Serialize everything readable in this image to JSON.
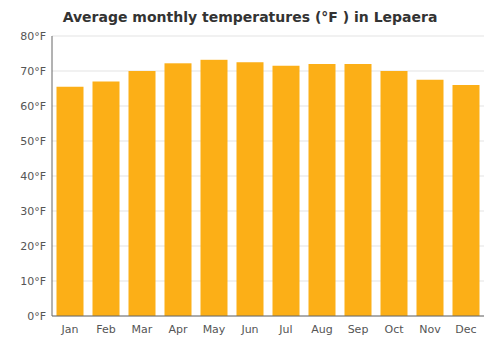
{
  "chart_data": {
    "type": "bar",
    "title": "Average monthly temperatures (°F ) in Lepaera",
    "categories": [
      "Jan",
      "Feb",
      "Mar",
      "Apr",
      "May",
      "Jun",
      "Jul",
      "Aug",
      "Sep",
      "Oct",
      "Nov",
      "Dec"
    ],
    "values": [
      65.5,
      67.0,
      70.0,
      72.2,
      73.2,
      72.5,
      71.5,
      72.0,
      72.0,
      70.0,
      67.5,
      66.0
    ],
    "color": "#FCAF17",
    "ylim": [
      0,
      80
    ],
    "yticks": [
      {
        "value": 0,
        "label": "0°F"
      },
      {
        "value": 10,
        "label": "10°F"
      },
      {
        "value": 20,
        "label": "20°F"
      },
      {
        "value": 30,
        "label": "30°F"
      },
      {
        "value": 40,
        "label": "40°F"
      },
      {
        "value": 50,
        "label": "50°F"
      },
      {
        "value": 60,
        "label": "60°F"
      },
      {
        "value": 70,
        "label": "70°F"
      },
      {
        "value": 80,
        "label": "80°F"
      }
    ],
    "grid": true
  }
}
